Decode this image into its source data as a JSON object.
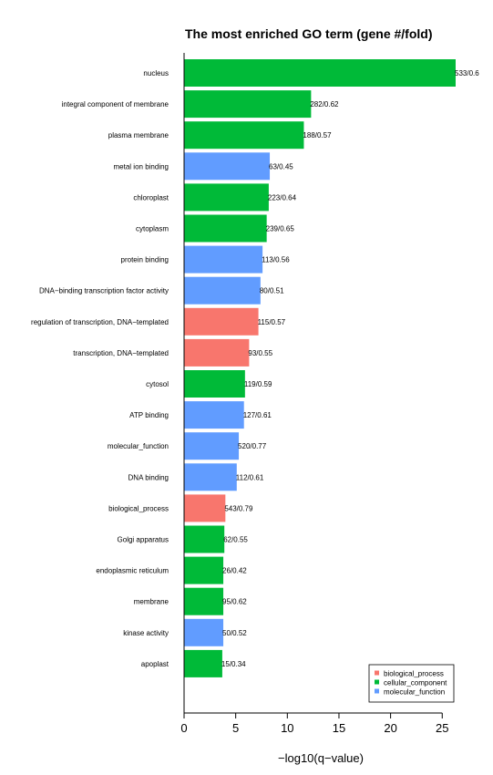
{
  "chart_data": {
    "type": "bar",
    "orientation": "horizontal",
    "title": "The most enriched GO term (gene #/fold)",
    "xlabel": "−log10(q−value)",
    "ylabel": "",
    "xlim": [
      0,
      26.3
    ],
    "xticks": [
      "0",
      "5",
      "10",
      "15",
      "20",
      "25"
    ],
    "grid": false,
    "legend_position": "bottom-right",
    "colors": {
      "biological_process": "#F8766D",
      "cellular_component": "#00BA38",
      "molecular_function": "#619CFF"
    },
    "legend": [
      {
        "key": "biological_process",
        "label": "biological_process"
      },
      {
        "key": "cellular_component",
        "label": "cellular_component"
      },
      {
        "key": "molecular_function",
        "label": "molecular_function"
      }
    ],
    "bars": [
      {
        "term": "nucleus",
        "value": 26.3,
        "label": "533/0.6",
        "group": "cellular_component"
      },
      {
        "term": "integral component of membrane",
        "value": 12.3,
        "label": "282/0.62",
        "group": "cellular_component"
      },
      {
        "term": "plasma membrane",
        "value": 11.6,
        "label": "188/0.57",
        "group": "cellular_component"
      },
      {
        "term": "metal ion binding",
        "value": 8.3,
        "label": "63/0.45",
        "group": "molecular_function"
      },
      {
        "term": "chloroplast",
        "value": 8.2,
        "label": "223/0.64",
        "group": "cellular_component"
      },
      {
        "term": "cytoplasm",
        "value": 8.0,
        "label": "239/0.65",
        "group": "cellular_component"
      },
      {
        "term": "protein binding",
        "value": 7.6,
        "label": "113/0.56",
        "group": "molecular_function"
      },
      {
        "term": "DNA−binding transcription factor activity",
        "value": 7.4,
        "label": "80/0.51",
        "group": "molecular_function"
      },
      {
        "term": "regulation of transcription, DNA−templated",
        "value": 7.2,
        "label": "115/0.57",
        "group": "biological_process"
      },
      {
        "term": "transcription, DNA−templated",
        "value": 6.3,
        "label": "93/0.55",
        "group": "biological_process"
      },
      {
        "term": "cytosol",
        "value": 5.9,
        "label": "119/0.59",
        "group": "cellular_component"
      },
      {
        "term": "ATP binding",
        "value": 5.8,
        "label": "127/0.61",
        "group": "molecular_function"
      },
      {
        "term": "molecular_function",
        "value": 5.3,
        "label": "520/0.77",
        "group": "molecular_function"
      },
      {
        "term": "DNA binding",
        "value": 5.1,
        "label": "112/0.61",
        "group": "molecular_function"
      },
      {
        "term": "biological_process",
        "value": 4.0,
        "label": "543/0.79",
        "group": "biological_process"
      },
      {
        "term": "Golgi apparatus",
        "value": 3.9,
        "label": "62/0.55",
        "group": "cellular_component"
      },
      {
        "term": "endoplasmic reticulum",
        "value": 3.8,
        "label": "26/0.42",
        "group": "cellular_component"
      },
      {
        "term": "membrane",
        "value": 3.8,
        "label": "95/0.62",
        "group": "cellular_component"
      },
      {
        "term": "kinase activity",
        "value": 3.8,
        "label": "50/0.52",
        "group": "molecular_function"
      },
      {
        "term": "apoplast",
        "value": 3.7,
        "label": "15/0.34",
        "group": "cellular_component"
      }
    ]
  }
}
